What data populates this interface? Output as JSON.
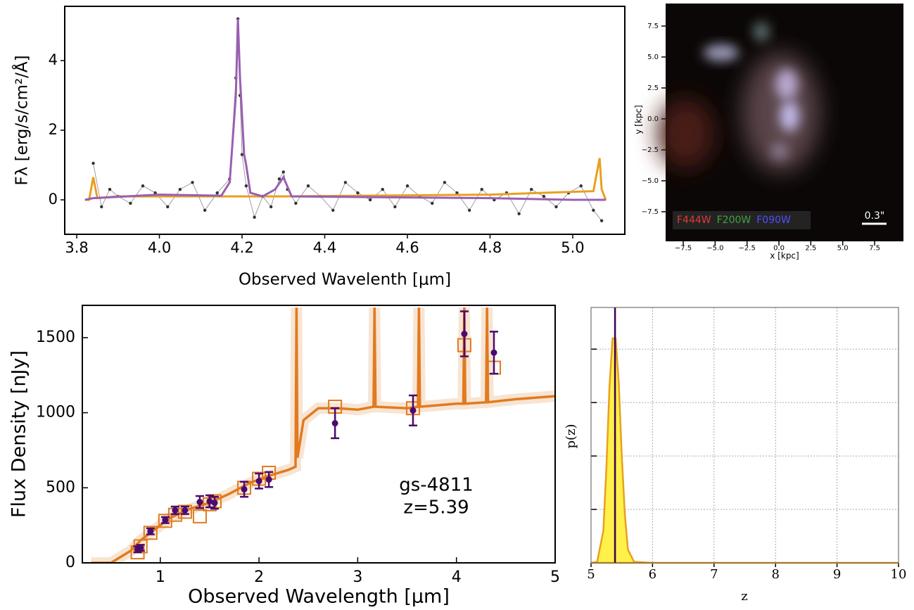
{
  "chart_data": [
    {
      "type": "line",
      "xlabel": "Observed Wavelenth [μm]",
      "ylabel": "Fλ [erg/s/cm²/Å]",
      "xlim": [
        3.771,
        5.126
      ],
      "ylim": [
        -0.99,
        5.56
      ],
      "xticks": [
        3.8,
        {
          "value": 4,
          "label": "4.0"
        },
        4.2,
        4.4,
        4.6,
        4.8,
        {
          "value": 5,
          "label": "5.0"
        }
      ],
      "yticks": [
        0,
        2,
        4
      ],
      "series": [
        {
          "style": "points",
          "color": "#333333",
          "x": [
            3.84,
            3.86,
            3.88,
            3.9,
            3.93,
            3.96,
            3.99,
            4.02,
            4.05,
            4.08,
            4.11,
            4.14,
            4.17,
            4.185,
            4.19,
            4.195,
            4.2,
            4.21,
            4.23,
            4.25,
            4.27,
            4.29,
            4.3,
            4.31,
            4.33,
            4.36,
            4.39,
            4.42,
            4.45,
            4.48,
            4.51,
            4.54,
            4.57,
            4.6,
            4.63,
            4.66,
            4.69,
            4.72,
            4.75,
            4.78,
            4.81,
            4.84,
            4.87,
            4.9,
            4.93,
            4.96,
            4.99,
            5.02,
            5.05,
            5.07
          ],
          "values": [
            1.05,
            -0.2,
            0.3,
            0.1,
            -0.1,
            0.4,
            0.2,
            -0.2,
            0.3,
            0.5,
            -0.3,
            0.2,
            0.6,
            3.5,
            5.2,
            3.0,
            1.3,
            0.4,
            -0.5,
            0.1,
            -0.2,
            0.6,
            0.8,
            0.3,
            -0.1,
            0.4,
            0.1,
            -0.3,
            0.5,
            0.2,
            0.0,
            0.3,
            -0.2,
            0.4,
            0.1,
            -0.1,
            0.5,
            0.2,
            -0.3,
            0.3,
            0.0,
            0.2,
            -0.4,
            0.3,
            0.1,
            -0.2,
            0.2,
            0.4,
            -0.3,
            -0.6
          ]
        },
        {
          "style": "line",
          "color": "#e8a020",
          "x": [
            3.82,
            3.83,
            3.84,
            3.85,
            3.9,
            4.3,
            4.8,
            5.05,
            5.065,
            5.07,
            5.08
          ],
          "values": [
            0,
            0,
            0.65,
            0.05,
            0.1,
            0.1,
            0.15,
            0.25,
            1.2,
            0.3,
            0.0
          ]
        },
        {
          "style": "line",
          "color": "#9a5fb0",
          "x": [
            3.82,
            3.84,
            4.0,
            4.15,
            4.17,
            4.185,
            4.19,
            4.195,
            4.205,
            4.21,
            4.22,
            4.25,
            4.28,
            4.3,
            4.32,
            4.5,
            4.8,
            5.0,
            5.08
          ],
          "values": [
            0,
            0.05,
            0.15,
            0.12,
            0.5,
            3.0,
            5.2,
            3.5,
            1.3,
            1.0,
            0.2,
            0.1,
            0.3,
            0.65,
            0.1,
            0.08,
            0.05,
            0.0,
            0.0
          ]
        }
      ]
    },
    {
      "type": "image",
      "xlabel": "x [kpc]",
      "ylabel": "y [kpc]",
      "xlim": [
        -8.88,
        9.76
      ],
      "ylim": [
        -9.89,
        9.32
      ],
      "xticks": [
        {
          "value": -7.5,
          "label": "−7.5"
        },
        {
          "value": -5,
          "label": "−5.0"
        },
        {
          "value": -2.5,
          "label": "−2.5"
        },
        {
          "value": 0,
          "label": "0.0"
        },
        2.5,
        {
          "value": 5,
          "label": "5.0"
        },
        7.5
      ],
      "yticks": [
        {
          "value": -7.5,
          "label": "−7.5"
        },
        {
          "value": -5,
          "label": "−5.0"
        },
        {
          "value": -2.5,
          "label": "−2.5"
        },
        {
          "value": 0,
          "label": "0.0"
        },
        2.5,
        {
          "value": 5,
          "label": "5.0"
        },
        7.5
      ],
      "filters": [
        {
          "label": "F444W",
          "color": "#e03a3a"
        },
        {
          "label": "F200W",
          "color": "#3fa33f"
        },
        {
          "label": "F090W",
          "color": "#4f4fff"
        }
      ],
      "scale_bar": "0.3\""
    },
    {
      "type": "sed",
      "xlabel": "Observed Wavelength [μm]",
      "ylabel": "Flux Density [nJy]",
      "xlim": [
        0.21,
        5
      ],
      "ylim": [
        0,
        1715
      ],
      "xticks": [
        1,
        2,
        3,
        4,
        5
      ],
      "yticks": [
        0,
        500,
        1000,
        1500
      ],
      "annotations": [
        "gs-4811",
        "z=5.39"
      ],
      "model": {
        "color": "#e07b20",
        "x": [
          0.3,
          0.5,
          0.7,
          0.8,
          0.9,
          1.0,
          1.1,
          1.3,
          1.5,
          1.7,
          1.9,
          2.1,
          2.3,
          2.37,
          2.38,
          2.39,
          2.45,
          2.6,
          2.8,
          3.0,
          3.16,
          3.17,
          3.18,
          3.5,
          3.61,
          3.62,
          3.63,
          4.0,
          4.07,
          4.08,
          4.09,
          4.3,
          4.31,
          4.32,
          4.6,
          5.0
        ],
        "values": [
          0,
          0,
          80,
          150,
          200,
          250,
          300,
          360,
          400,
          460,
          530,
          580,
          620,
          640,
          1700,
          700,
          950,
          1030,
          1030,
          1020,
          1040,
          1700,
          1040,
          1030,
          1040,
          1700,
          1040,
          1060,
          1060,
          1700,
          1060,
          1070,
          1700,
          1070,
          1090,
          1110
        ]
      },
      "photometry": {
        "color": "#4b0a6e",
        "x": [
          0.77,
          0.8,
          0.9,
          1.05,
          1.15,
          1.25,
          1.4,
          1.5,
          1.55,
          1.85,
          2.0,
          2.1,
          2.77,
          3.56,
          4.08,
          4.38
        ],
        "values": [
          90,
          100,
          210,
          285,
          350,
          350,
          405,
          410,
          400,
          490,
          545,
          555,
          930,
          1015,
          1525,
          1400
        ],
        "errors": [
          20,
          20,
          20,
          20,
          25,
          25,
          40,
          40,
          40,
          50,
          50,
          50,
          100,
          100,
          150,
          140
        ],
        "model_values": [
          70,
          110,
          200,
          280,
          320,
          340,
          310,
          390,
          410,
          500,
          560,
          600,
          1040,
          1030,
          1450,
          1300
        ]
      }
    },
    {
      "type": "area",
      "xlabel": "z",
      "ylabel": "p(z)",
      "xlim": [
        5,
        10
      ],
      "ylim": [
        0,
        4.78
      ],
      "xticks": [
        5,
        6,
        7,
        8,
        9,
        10
      ],
      "yticks": [
        1,
        2,
        3,
        4
      ],
      "ytick_labels": false,
      "grid": true,
      "color": "#fff04a",
      "edge_color": "#e8a020",
      "x": [
        5.0,
        5.1,
        5.2,
        5.25,
        5.3,
        5.35,
        5.4,
        5.45,
        5.5,
        5.55,
        5.6,
        5.7,
        6,
        10
      ],
      "values": [
        0,
        0.02,
        0.6,
        1.8,
        3.3,
        4.2,
        4.2,
        3.4,
        2.0,
        0.9,
        0.25,
        0.02,
        0,
        0
      ],
      "z_best": 5.39,
      "z_color": "#3a0050"
    }
  ]
}
